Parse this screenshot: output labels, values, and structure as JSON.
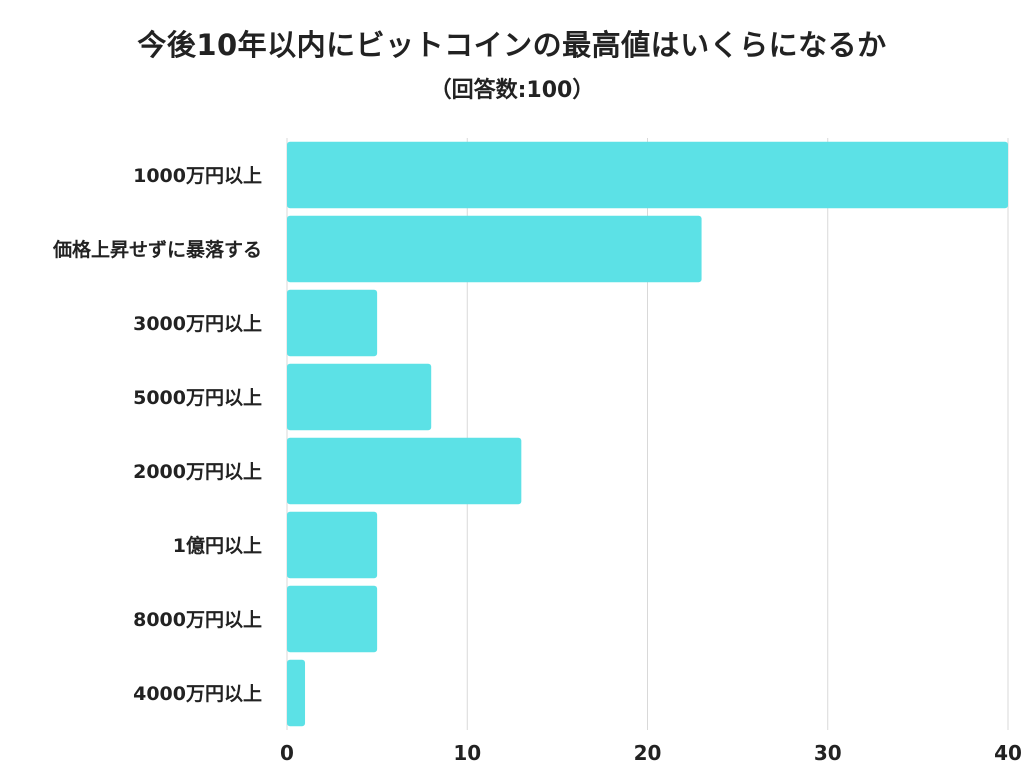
{
  "chart_data": {
    "type": "bar",
    "orientation": "horizontal",
    "title": "今後10年以内にビットコインの最高値はいくらになるか",
    "subtitle": "（回答数:100）",
    "categories": [
      "1000万円以上",
      "価格上昇せずに暴落する",
      "3000万円以上",
      "5000万円以上",
      "2000万円以上",
      "1億円以上",
      "8000万円以上",
      "4000万円以上"
    ],
    "values": [
      40,
      23,
      5,
      8,
      13,
      5,
      5,
      1
    ],
    "xlim": [
      0,
      40
    ],
    "xticks": [
      0,
      10,
      20,
      30,
      40
    ],
    "grid": true,
    "xlabel": "",
    "ylabel": "",
    "bar_color": "#5ce1e6",
    "grid_color": "#d9d9d9"
  }
}
